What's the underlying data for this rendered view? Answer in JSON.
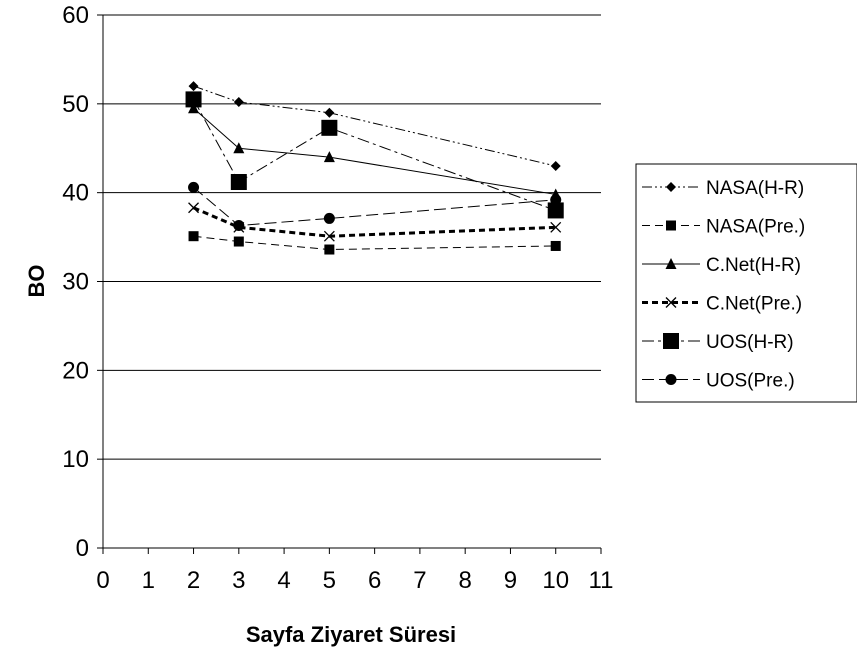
{
  "chart_data": {
    "type": "line",
    "title": "",
    "xlabel": "Sayfa Ziyaret Süresi",
    "ylabel": "BO",
    "xlim": [
      0,
      11
    ],
    "ylim": [
      0,
      60
    ],
    "x_ticks": [
      "0",
      "1",
      "2",
      "3",
      "4",
      "5",
      "6",
      "7",
      "8",
      "9",
      "10",
      "11"
    ],
    "y_ticks": [
      "0",
      "10",
      "20",
      "30",
      "40",
      "50",
      "60"
    ],
    "grid": "horizontal",
    "legend_position": "right",
    "series": [
      {
        "name": "NASA(H-R)",
        "x": [
          2,
          3,
          5,
          10
        ],
        "y": [
          52.0,
          50.2,
          49.0,
          43.0
        ],
        "marker": "diamond",
        "dash": "dashdotdot",
        "line_color": "#000000"
      },
      {
        "name": "NASA(Pre.)",
        "x": [
          2,
          3,
          5,
          10
        ],
        "y": [
          35.1,
          34.5,
          33.6,
          34.0
        ],
        "marker": "square",
        "dash": "dashed",
        "line_color": "#000000"
      },
      {
        "name": "C.Net(H-R)",
        "x": [
          2,
          3,
          5,
          10
        ],
        "y": [
          49.5,
          45.0,
          44.0,
          39.8
        ],
        "marker": "triangle",
        "dash": "solid",
        "line_color": "#000000"
      },
      {
        "name": "C.Net(Pre.)",
        "x": [
          2,
          3,
          5,
          10
        ],
        "y": [
          38.3,
          36.1,
          35.1,
          36.1
        ],
        "marker": "x",
        "dash": "bolddash",
        "line_color": "#000000"
      },
      {
        "name": "UOS(H-R)",
        "x": [
          2,
          3,
          5,
          10
        ],
        "y": [
          50.5,
          41.2,
          47.3,
          38.0
        ],
        "marker": "bigsquare",
        "dash": "dashdot",
        "line_color": "#000000"
      },
      {
        "name": "UOS(Pre.)",
        "x": [
          2,
          3,
          5,
          10
        ],
        "y": [
          40.6,
          36.3,
          37.1,
          39.2
        ],
        "marker": "circle",
        "dash": "longdash",
        "line_color": "#000000"
      }
    ]
  }
}
